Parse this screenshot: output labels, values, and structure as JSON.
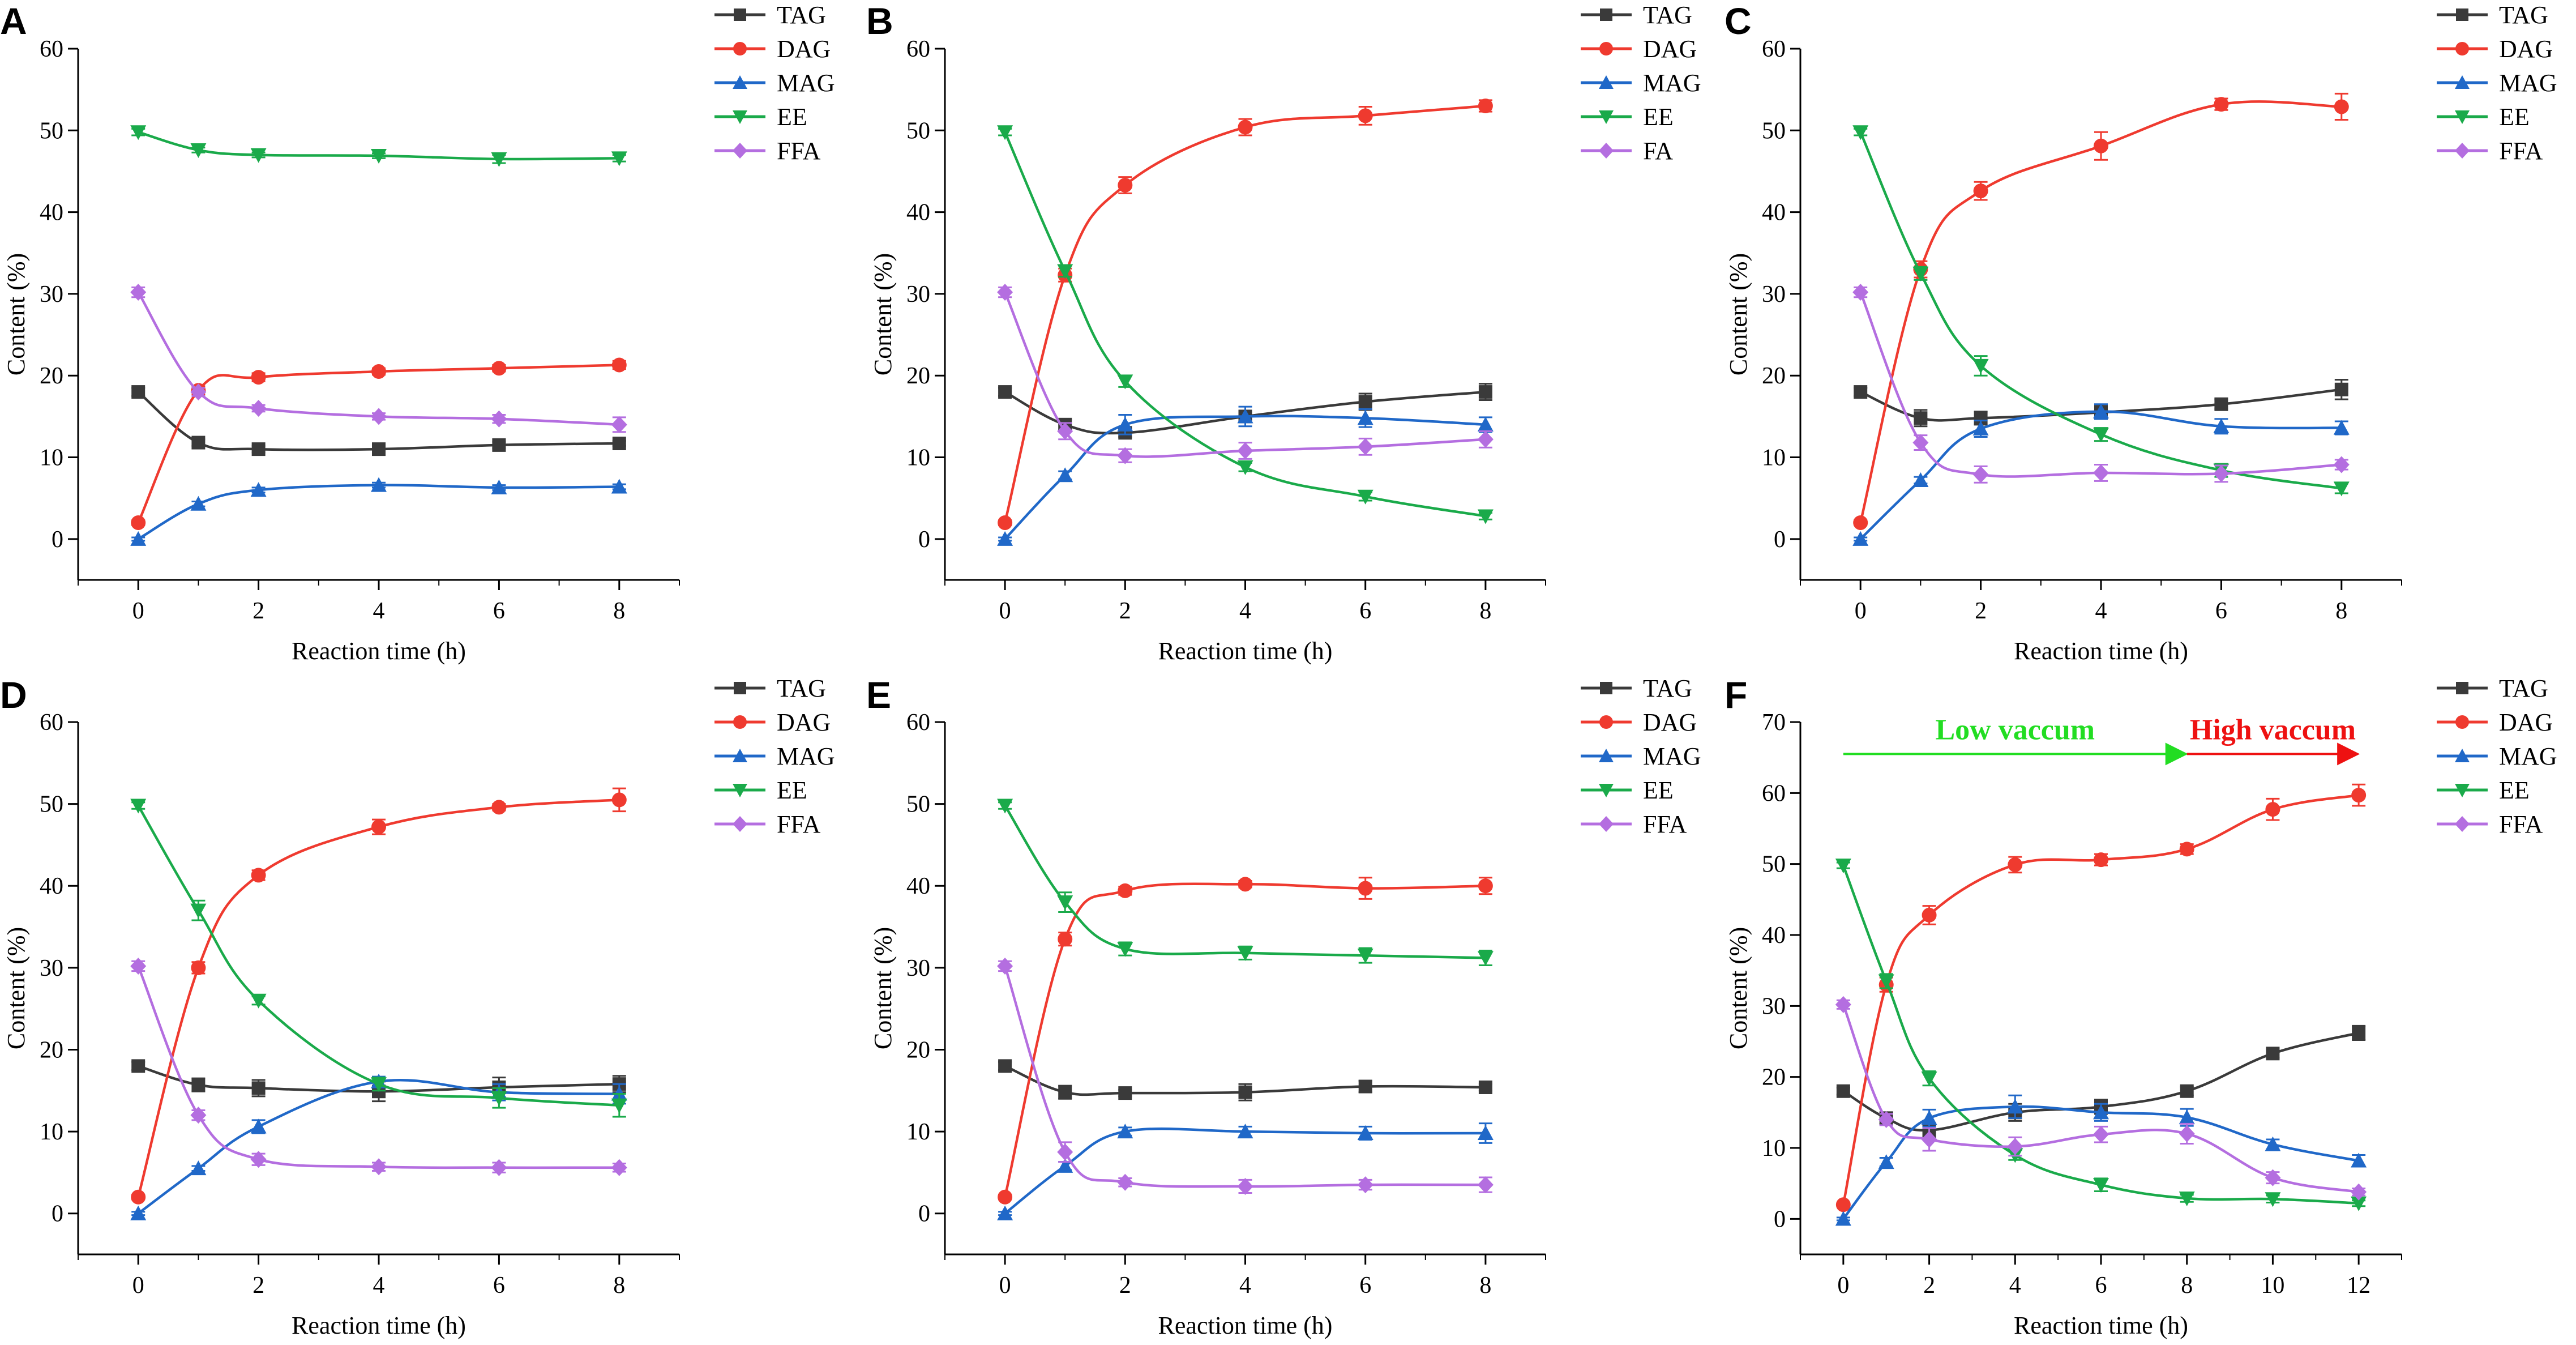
{
  "figure": {
    "layout": "2 rows x 3 columns of line charts"
  },
  "chart_data": [
    {
      "type": "line",
      "panel": "A",
      "xlabel": "Reaction time (h)",
      "ylabel": "Content (%)",
      "xlim": [
        -1,
        9
      ],
      "ylim": [
        -5,
        60
      ],
      "xticks": [
        "0",
        "2",
        "4",
        "6",
        "8"
      ],
      "yticks": [
        "0",
        "10",
        "20",
        "30",
        "40",
        "50",
        "60"
      ],
      "x": [
        0,
        1,
        2,
        4,
        6,
        8
      ],
      "legend_position": "top-right",
      "series": [
        {
          "name": "TAG",
          "color": "#3a3a3a",
          "marker": "square",
          "values": [
            18,
            11.8,
            11,
            11,
            11.5,
            11.7
          ],
          "errors": [
            0.5,
            0.4,
            0.4,
            0.3,
            0.4,
            0.3
          ]
        },
        {
          "name": "DAG",
          "color": "#ef3a2f",
          "marker": "circle",
          "values": [
            2,
            18.2,
            19.8,
            20.5,
            20.9,
            21.3
          ],
          "errors": [
            0.3,
            0.5,
            0.5,
            0.4,
            0.4,
            0.5
          ]
        },
        {
          "name": "MAG",
          "color": "#2068c8",
          "marker": "triangle-up",
          "values": [
            0,
            4.3,
            6,
            6.6,
            6.3,
            6.4
          ],
          "errors": [
            0.2,
            0.3,
            0.3,
            0.3,
            0.3,
            0.3
          ]
        },
        {
          "name": "EE",
          "color": "#1aaa4a",
          "marker": "triangle-down",
          "values": [
            49.8,
            47.6,
            47,
            46.9,
            46.5,
            46.6
          ],
          "errors": [
            0.4,
            0.3,
            0.3,
            0.3,
            0.5,
            0.4
          ]
        },
        {
          "name": "FFA",
          "color": "#b46ee0",
          "marker": "diamond",
          "values": [
            30.2,
            18,
            16,
            15,
            14.7,
            14
          ],
          "errors": [
            0.6,
            0.5,
            0.4,
            0.4,
            0.5,
            0.9
          ]
        }
      ]
    },
    {
      "type": "line",
      "panel": "B",
      "xlabel": "Reaction time (h)",
      "ylabel": "Content (%)",
      "xlim": [
        -1,
        9
      ],
      "ylim": [
        -5,
        60
      ],
      "xticks": [
        "0",
        "2",
        "4",
        "6",
        "8"
      ],
      "yticks": [
        "0",
        "10",
        "20",
        "30",
        "40",
        "50",
        "60"
      ],
      "x": [
        0,
        1,
        2,
        4,
        6,
        8
      ],
      "legend_position": "top-right",
      "series": [
        {
          "name": "TAG",
          "color": "#3a3a3a",
          "marker": "square",
          "values": [
            18,
            14,
            13,
            15,
            16.8,
            18
          ],
          "errors": [
            0.5,
            0.6,
            0.5,
            0.6,
            1.0,
            1.0
          ]
        },
        {
          "name": "DAG",
          "color": "#ef3a2f",
          "marker": "circle",
          "values": [
            2,
            32.3,
            43.3,
            50.4,
            51.8,
            53
          ],
          "errors": [
            0.3,
            0.8,
            1.0,
            1.0,
            1.1,
            0.7
          ]
        },
        {
          "name": "MAG",
          "color": "#2068c8",
          "marker": "triangle-up",
          "values": [
            0,
            7.8,
            14,
            15,
            14.8,
            14
          ],
          "errors": [
            0.2,
            0.5,
            1.2,
            1.2,
            1.1,
            0.9
          ]
        },
        {
          "name": "EE",
          "color": "#1aaa4a",
          "marker": "triangle-down",
          "values": [
            49.8,
            32.8,
            19.3,
            8.8,
            5.2,
            2.8
          ],
          "errors": [
            0.4,
            0.7,
            0.7,
            0.5,
            0.5,
            0.4
          ]
        },
        {
          "name": "FA",
          "color": "#b46ee0",
          "marker": "diamond",
          "values": [
            30.2,
            13.2,
            10.2,
            10.8,
            11.3,
            12.2
          ],
          "errors": [
            0.6,
            1.0,
            0.8,
            1.0,
            1.0,
            1.0
          ]
        }
      ]
    },
    {
      "type": "line",
      "panel": "C",
      "xlabel": "Reaction time (h)",
      "ylabel": "Content (%)",
      "xlim": [
        -1,
        9
      ],
      "ylim": [
        -5,
        60
      ],
      "xticks": [
        "0",
        "2",
        "4",
        "6",
        "8"
      ],
      "yticks": [
        "0",
        "10",
        "20",
        "30",
        "40",
        "50",
        "60"
      ],
      "x": [
        0,
        1,
        2,
        4,
        6,
        8
      ],
      "legend_position": "top-right",
      "series": [
        {
          "name": "TAG",
          "color": "#3a3a3a",
          "marker": "square",
          "values": [
            18,
            14.8,
            14.8,
            15.5,
            16.5,
            18.3
          ],
          "errors": [
            0.5,
            1.0,
            0.8,
            0.8,
            0.6,
            1.2
          ]
        },
        {
          "name": "DAG",
          "color": "#ef3a2f",
          "marker": "circle",
          "values": [
            2,
            33,
            42.6,
            48.1,
            53.2,
            52.9
          ],
          "errors": [
            0.3,
            1.0,
            1.1,
            1.7,
            0.7,
            1.6
          ]
        },
        {
          "name": "MAG",
          "color": "#2068c8",
          "marker": "triangle-up",
          "values": [
            0,
            7.2,
            13.5,
            15.6,
            13.8,
            13.6
          ],
          "errors": [
            0.2,
            0.4,
            1.0,
            0.9,
            0.9,
            0.8
          ]
        },
        {
          "name": "EE",
          "color": "#1aaa4a",
          "marker": "triangle-down",
          "values": [
            49.8,
            32.5,
            21.2,
            12.8,
            8.4,
            6.2
          ],
          "errors": [
            0.4,
            0.8,
            1.2,
            0.8,
            0.8,
            0.6
          ]
        },
        {
          "name": "FFA",
          "color": "#b46ee0",
          "marker": "diamond",
          "values": [
            30.2,
            11.8,
            7.9,
            8.1,
            8,
            9.1
          ],
          "errors": [
            0.6,
            0.9,
            1.0,
            1.0,
            1.0,
            0.6
          ]
        }
      ]
    },
    {
      "type": "line",
      "panel": "D",
      "xlabel": "Reaction time (h)",
      "ylabel": "Content (%)",
      "xlim": [
        -1,
        9
      ],
      "ylim": [
        -5,
        60
      ],
      "xticks": [
        "0",
        "2",
        "4",
        "6",
        "8"
      ],
      "yticks": [
        "0",
        "10",
        "20",
        "30",
        "40",
        "50",
        "60"
      ],
      "x": [
        0,
        1,
        2,
        4,
        6,
        8
      ],
      "legend_position": "top-right",
      "series": [
        {
          "name": "TAG",
          "color": "#3a3a3a",
          "marker": "square",
          "values": [
            18,
            15.7,
            15.3,
            14.9,
            15.4,
            15.8
          ],
          "errors": [
            0.5,
            0.8,
            1.0,
            1.2,
            1.2,
            1.0
          ]
        },
        {
          "name": "DAG",
          "color": "#ef3a2f",
          "marker": "circle",
          "values": [
            2,
            30,
            41.3,
            47.2,
            49.6,
            50.5
          ],
          "errors": [
            0.3,
            0.7,
            0.6,
            0.9,
            0.4,
            1.4
          ]
        },
        {
          "name": "MAG",
          "color": "#2068c8",
          "marker": "triangle-up",
          "values": [
            0,
            5.5,
            10.6,
            16.1,
            14.8,
            14.6
          ],
          "errors": [
            0.2,
            0.3,
            0.8,
            0.6,
            1.0,
            1.2
          ]
        },
        {
          "name": "EE",
          "color": "#1aaa4a",
          "marker": "triangle-down",
          "values": [
            49.8,
            37,
            26,
            15.8,
            14.1,
            13.2
          ],
          "errors": [
            0.4,
            1.2,
            0.5,
            0.8,
            1.2,
            1.4
          ]
        },
        {
          "name": "FFA",
          "color": "#b46ee0",
          "marker": "diamond",
          "values": [
            30.2,
            12,
            6.6,
            5.7,
            5.6,
            5.6
          ],
          "errors": [
            0.6,
            0.6,
            0.7,
            0.5,
            0.6,
            0.5
          ]
        }
      ]
    },
    {
      "type": "line",
      "panel": "E",
      "xlabel": "Reaction time (h)",
      "ylabel": "Content (%)",
      "xlim": [
        -1,
        9
      ],
      "ylim": [
        -5,
        60
      ],
      "xticks": [
        "0",
        "2",
        "4",
        "6",
        "8"
      ],
      "yticks": [
        "0",
        "10",
        "20",
        "30",
        "40",
        "50",
        "60"
      ],
      "x": [
        0,
        1,
        2,
        4,
        6,
        8
      ],
      "legend_position": "top-right",
      "series": [
        {
          "name": "TAG",
          "color": "#3a3a3a",
          "marker": "square",
          "values": [
            18,
            14.8,
            14.7,
            14.8,
            15.5,
            15.4
          ],
          "errors": [
            0.5,
            0.8,
            0.4,
            1.0,
            0.7,
            0.4
          ]
        },
        {
          "name": "DAG",
          "color": "#ef3a2f",
          "marker": "circle",
          "values": [
            2,
            33.5,
            39.4,
            40.2,
            39.7,
            40
          ],
          "errors": [
            0.3,
            0.8,
            0.5,
            0.4,
            1.3,
            1.0
          ]
        },
        {
          "name": "MAG",
          "color": "#2068c8",
          "marker": "triangle-up",
          "values": [
            0,
            5.8,
            10,
            10,
            9.8,
            9.8
          ],
          "errors": [
            0.2,
            0.5,
            0.5,
            0.6,
            0.8,
            1.2
          ]
        },
        {
          "name": "EE",
          "color": "#1aaa4a",
          "marker": "triangle-down",
          "values": [
            49.8,
            38,
            32.3,
            31.8,
            31.5,
            31.2
          ],
          "errors": [
            0.4,
            1.2,
            0.8,
            0.8,
            0.9,
            0.9
          ]
        },
        {
          "name": "FFA",
          "color": "#b46ee0",
          "marker": "diamond",
          "values": [
            30.2,
            7.5,
            3.8,
            3.3,
            3.5,
            3.5
          ],
          "errors": [
            0.6,
            1.2,
            0.5,
            0.8,
            0.6,
            0.9
          ]
        }
      ]
    },
    {
      "type": "line",
      "panel": "F",
      "xlabel": "Reaction time (h)",
      "ylabel": "Content (%)",
      "xlim": [
        -1,
        13
      ],
      "ylim": [
        -5,
        70
      ],
      "xticks": [
        "0",
        "2",
        "4",
        "6",
        "8",
        "10",
        "12"
      ],
      "yticks": [
        "0",
        "10",
        "20",
        "30",
        "40",
        "50",
        "60",
        "70"
      ],
      "x": [
        0,
        1,
        2,
        4,
        6,
        8,
        10,
        12
      ],
      "legend_position": "top-right",
      "annotations": [
        {
          "text": "Low vaccum",
          "color": "#22dd22",
          "from_x": 0,
          "to_x": 8,
          "y": 65.5
        },
        {
          "text": "High vaccum",
          "color": "#ee1111",
          "from_x": 8,
          "to_x": 12,
          "y": 65.5
        }
      ],
      "series": [
        {
          "name": "TAG",
          "color": "#3a3a3a",
          "marker": "square",
          "values": [
            18,
            14.2,
            12.5,
            15,
            15.8,
            18,
            23.3,
            26.2
          ],
          "errors": [
            0.5,
            0.8,
            1.0,
            1.2,
            1.0,
            0.6,
            0.6,
            1.0
          ]
        },
        {
          "name": "DAG",
          "color": "#ef3a2f",
          "marker": "circle",
          "values": [
            2,
            33,
            42.8,
            49.9,
            50.6,
            52.1,
            57.7,
            59.7
          ],
          "errors": [
            0.3,
            1.0,
            1.3,
            1.1,
            0.8,
            0.7,
            1.5,
            1.5
          ]
        },
        {
          "name": "MAG",
          "color": "#2068c8",
          "marker": "triangle-up",
          "values": [
            0,
            8,
            14.2,
            15.8,
            15,
            14.3,
            10.5,
            8.2
          ],
          "errors": [
            0.2,
            0.6,
            1.2,
            1.6,
            1.2,
            1.2,
            0.7,
            0.8
          ]
        },
        {
          "name": "EE",
          "color": "#1aaa4a",
          "marker": "triangle-down",
          "values": [
            49.8,
            33.5,
            19.8,
            9,
            4.8,
            2.9,
            2.8,
            2.2
          ],
          "errors": [
            0.4,
            1.0,
            1.0,
            0.7,
            0.9,
            0.5,
            0.5,
            0.4
          ]
        },
        {
          "name": "FFA",
          "color": "#b46ee0",
          "marker": "diamond",
          "values": [
            30.2,
            14,
            11.2,
            10.2,
            11.9,
            12,
            5.8,
            3.8
          ],
          "errors": [
            0.6,
            0.8,
            1.6,
            1.3,
            1.1,
            1.4,
            0.8,
            0.5
          ]
        }
      ]
    }
  ]
}
